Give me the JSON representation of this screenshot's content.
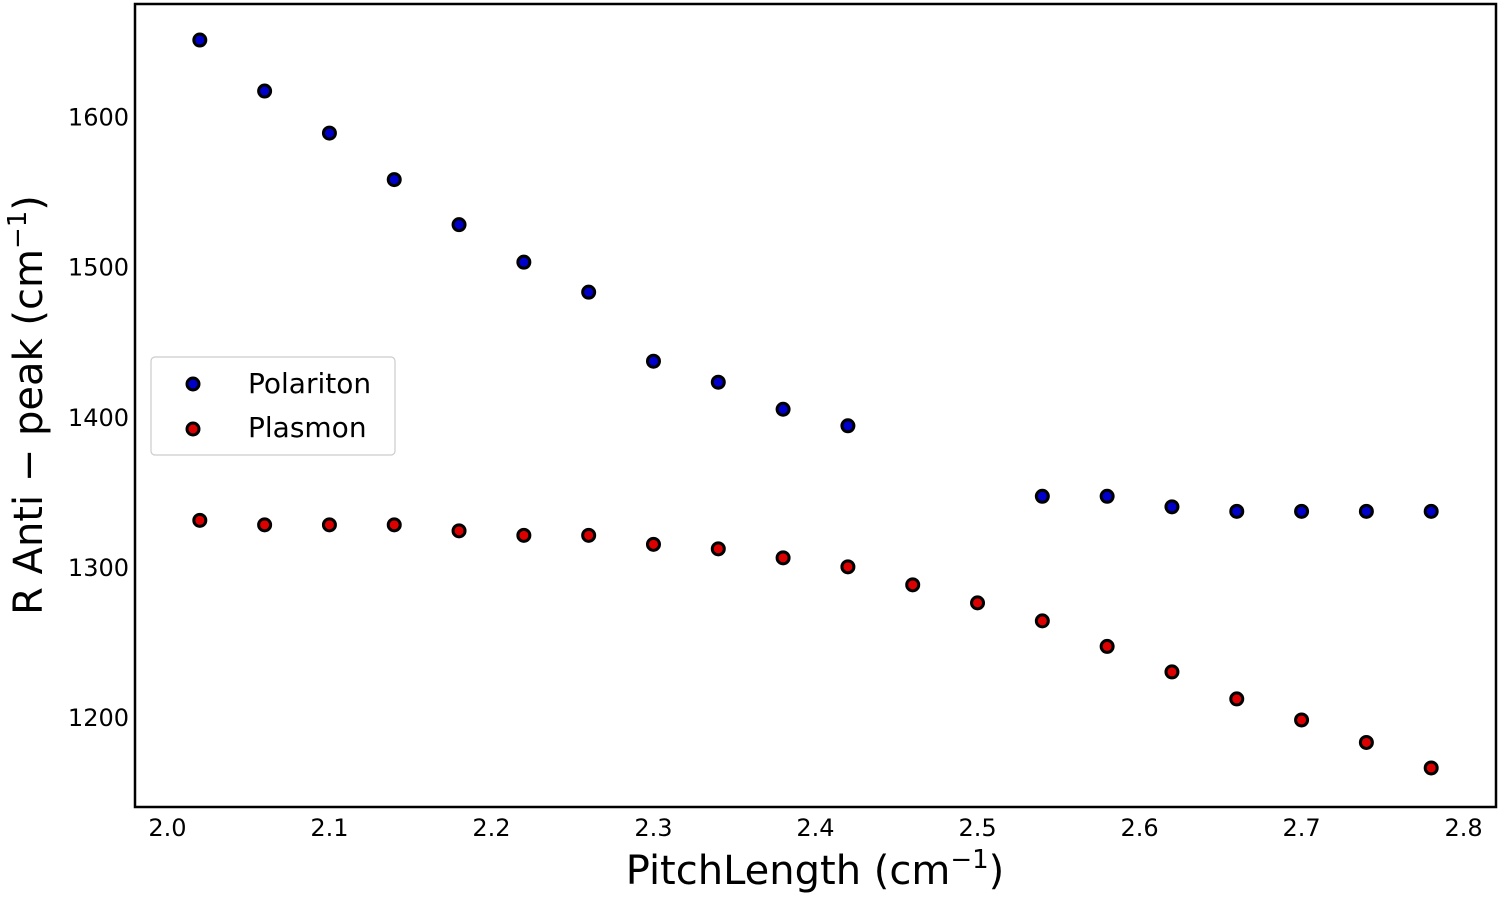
{
  "chart_data": {
    "type": "scatter",
    "xlabel": "PitchLength (cm",
    "xlabel_sup": "−1",
    "xlabel_end": ")",
    "ylabel": "R Anti − peak (cm",
    "ylabel_sup": "−1",
    "ylabel_end": ")",
    "xlim": [
      1.98,
      2.82
    ],
    "ylim": [
      1140,
      1675
    ],
    "xticks": [
      "2.0",
      "2.1",
      "2.2",
      "2.3",
      "2.4",
      "2.5",
      "2.6",
      "2.7",
      "2.8"
    ],
    "yticks": [
      "1200",
      "1300",
      "1400",
      "1500",
      "1600"
    ],
    "grid": false,
    "legend_position": "center-left",
    "series": [
      {
        "name": "Polariton",
        "color": "#0000cc",
        "points": [
          [
            2.02,
            1651
          ],
          [
            2.06,
            1617
          ],
          [
            2.1,
            1589
          ],
          [
            2.14,
            1558
          ],
          [
            2.18,
            1528
          ],
          [
            2.22,
            1503
          ],
          [
            2.26,
            1483
          ],
          [
            2.3,
            1437
          ],
          [
            2.34,
            1423
          ],
          [
            2.38,
            1405
          ],
          [
            2.42,
            1394
          ],
          [
            2.54,
            1347
          ],
          [
            2.58,
            1347
          ],
          [
            2.62,
            1340
          ],
          [
            2.66,
            1337
          ],
          [
            2.7,
            1337
          ],
          [
            2.74,
            1337
          ],
          [
            2.78,
            1337
          ]
        ]
      },
      {
        "name": "Plasmon",
        "color": "#dd0000",
        "points": [
          [
            2.02,
            1331
          ],
          [
            2.06,
            1328
          ],
          [
            2.1,
            1328
          ],
          [
            2.14,
            1328
          ],
          [
            2.18,
            1324
          ],
          [
            2.22,
            1321
          ],
          [
            2.26,
            1321
          ],
          [
            2.3,
            1315
          ],
          [
            2.34,
            1312
          ],
          [
            2.38,
            1306
          ],
          [
            2.42,
            1300
          ],
          [
            2.46,
            1288
          ],
          [
            2.5,
            1276
          ],
          [
            2.54,
            1264
          ],
          [
            2.58,
            1247
          ],
          [
            2.62,
            1230
          ],
          [
            2.66,
            1212
          ],
          [
            2.7,
            1198
          ],
          [
            2.74,
            1183
          ],
          [
            2.78,
            1166
          ]
        ]
      }
    ]
  }
}
